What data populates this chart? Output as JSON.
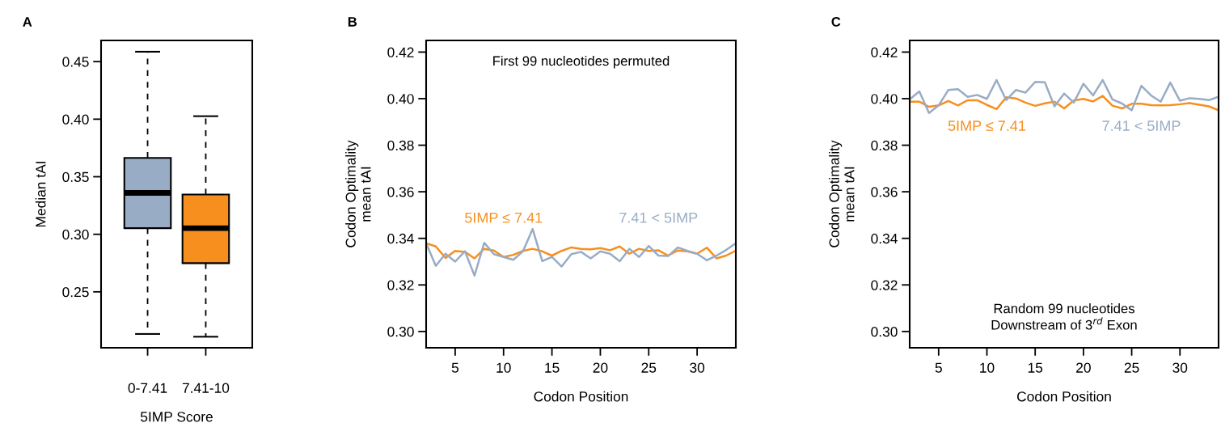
{
  "chart_data": [
    {
      "type": "box",
      "title": "A",
      "categories": [
        "0-7.41",
        "7.41-10"
      ],
      "xlabel": "5IMP Score",
      "ylabel": "Median tAI",
      "ylim": [
        0.2014,
        0.4684
      ],
      "yticks": [
        {
          "value": 0.25,
          "label": "0.25"
        },
        {
          "value": 0.3,
          "label": "0.30"
        },
        {
          "value": 0.35,
          "label": "0.35"
        },
        {
          "value": 0.4,
          "label": "0.40"
        },
        {
          "value": 0.45,
          "label": "0.45"
        }
      ],
      "colors": [
        "#98acc6",
        "#f78f1e"
      ],
      "grid": false,
      "boxes": [
        {
          "low": 0.2134,
          "q1": 0.3053,
          "median": 0.336,
          "q3": 0.3664,
          "high": 0.4586
        },
        {
          "low": 0.211,
          "q1": 0.2749,
          "median": 0.3053,
          "q3": 0.3346,
          "high": 0.4026
        }
      ]
    },
    {
      "type": "line",
      "title": "B",
      "xlabel": "Codon Position",
      "ylabel": "Codon Optimality\nmean tAI",
      "annotations": [
        "First 99 nucleotides permuted"
      ],
      "x": [
        2,
        3,
        4,
        5,
        6,
        7,
        8,
        9,
        10,
        11,
        12,
        13,
        14,
        15,
        16,
        17,
        18,
        19,
        20,
        21,
        22,
        23,
        24,
        25,
        26,
        27,
        28,
        29,
        30,
        31,
        32,
        33,
        34
      ],
      "xlim": [
        2,
        34
      ],
      "xticks": [
        5,
        10,
        15,
        20,
        25,
        30
      ],
      "ylim": [
        0.293,
        0.425
      ],
      "yticks": [
        {
          "value": 0.3,
          "label": "0.30"
        },
        {
          "value": 0.32,
          "label": "0.32"
        },
        {
          "value": 0.34,
          "label": "0.34"
        },
        {
          "value": 0.36,
          "label": "0.36"
        },
        {
          "value": 0.38,
          "label": "0.38"
        },
        {
          "value": 0.4,
          "label": "0.40"
        },
        {
          "value": 0.42,
          "label": "0.42"
        }
      ],
      "grid": false,
      "series": [
        {
          "name": "5IMP ≤ 7.41",
          "color": "#f78f1e",
          "values": [
            0.3379,
            0.3365,
            0.3316,
            0.3346,
            0.3342,
            0.3314,
            0.3355,
            0.3348,
            0.332,
            0.3329,
            0.3346,
            0.3355,
            0.3344,
            0.3326,
            0.3346,
            0.3361,
            0.3355,
            0.3353,
            0.3358,
            0.3349,
            0.3365,
            0.3334,
            0.3355,
            0.3346,
            0.3349,
            0.3326,
            0.3348,
            0.3344,
            0.3334,
            0.336,
            0.3314,
            0.3326,
            0.3347
          ]
        },
        {
          "name": "7.41 < 5IMP",
          "color": "#98acc6",
          "values": [
            0.3379,
            0.3282,
            0.3334,
            0.33,
            0.3345,
            0.324,
            0.3381,
            0.3332,
            0.332,
            0.3308,
            0.3344,
            0.344,
            0.3302,
            0.332,
            0.3279,
            0.3332,
            0.3342,
            0.3314,
            0.3344,
            0.3334,
            0.3302,
            0.3355,
            0.332,
            0.3367,
            0.3326,
            0.3324,
            0.3361,
            0.3346,
            0.3334,
            0.3306,
            0.3326,
            0.335,
            0.3379
          ]
        }
      ]
    },
    {
      "type": "line",
      "title": "C",
      "xlabel": "Codon Position",
      "ylabel": "Codon Optimality\nmean tAI",
      "annotations": [
        "Random 99 nucleotides\nDownstream of 3$^{rd}$ Exon"
      ],
      "x": [
        2,
        3,
        4,
        5,
        6,
        7,
        8,
        9,
        10,
        11,
        12,
        13,
        14,
        15,
        16,
        17,
        18,
        19,
        20,
        21,
        22,
        23,
        24,
        25,
        26,
        27,
        28,
        29,
        30,
        31,
        32,
        33,
        34
      ],
      "xlim": [
        2,
        34
      ],
      "xticks": [
        5,
        10,
        15,
        20,
        25,
        30
      ],
      "ylim": [
        0.293,
        0.425
      ],
      "yticks": [
        {
          "value": 0.3,
          "label": "0.30"
        },
        {
          "value": 0.32,
          "label": "0.32"
        },
        {
          "value": 0.34,
          "label": "0.34"
        },
        {
          "value": 0.36,
          "label": "0.36"
        },
        {
          "value": 0.38,
          "label": "0.38"
        },
        {
          "value": 0.4,
          "label": "0.40"
        },
        {
          "value": 0.42,
          "label": "0.42"
        }
      ],
      "grid": false,
      "series": [
        {
          "name": "5IMP ≤ 7.41",
          "color": "#f78f1e",
          "values": [
            0.3987,
            0.3987,
            0.3965,
            0.3971,
            0.399,
            0.3971,
            0.3993,
            0.3993,
            0.3973,
            0.3955,
            0.4006,
            0.4001,
            0.3983,
            0.3969,
            0.398,
            0.3987,
            0.3958,
            0.3992,
            0.3999,
            0.3988,
            0.4012,
            0.397,
            0.3958,
            0.3978,
            0.3978,
            0.3972,
            0.3971,
            0.3972,
            0.3976,
            0.3981,
            0.3974,
            0.3967,
            0.395
          ]
        },
        {
          "name": "7.41 < 5IMP",
          "color": "#98acc6",
          "values": [
            0.3997,
            0.4031,
            0.3938,
            0.3971,
            0.4037,
            0.4041,
            0.4008,
            0.4016,
            0.3999,
            0.408,
            0.3994,
            0.4037,
            0.4026,
            0.4072,
            0.407,
            0.3967,
            0.4022,
            0.3983,
            0.4064,
            0.4014,
            0.408,
            0.3997,
            0.3979,
            0.395,
            0.4055,
            0.4014,
            0.3987,
            0.4069,
            0.3991,
            0.4002,
            0.3999,
            0.3994,
            0.4008
          ]
        }
      ]
    }
  ]
}
